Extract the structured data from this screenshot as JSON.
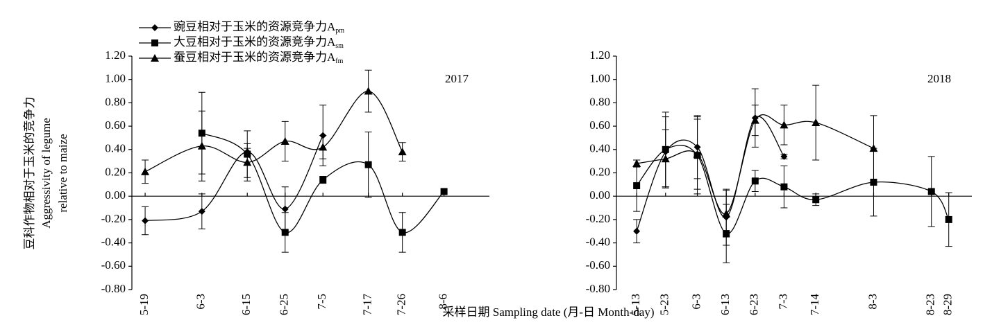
{
  "legend": [
    {
      "name": "豌豆相对于玉米的资源竞争力A",
      "subscript": "pm",
      "marker": "diamond"
    },
    {
      "name": "大豆相对于玉米的资源竞争力A",
      "subscript": "sm",
      "marker": "square"
    },
    {
      "name": "蚕豆相对于玉米的资源竞争力A",
      "subscript": "fm",
      "marker": "triangle"
    }
  ],
  "y_label": [
    "豆科作物相对于玉米的竞争力",
    "Aggressivity of legume",
    "relative to maize"
  ],
  "x_label": "采样日期 Sampling date (月-日 Month-day)",
  "chart_data": [
    {
      "type": "line",
      "label": "2017",
      "categories": [
        "5-19",
        "6-3",
        "6-15",
        "6-25",
        "7-5",
        "7-17",
        "7-26",
        "8-6"
      ],
      "series": [
        {
          "color": "#000000",
          "values": [
            -0.21,
            -0.13,
            0.38,
            -0.11,
            0.52,
            null,
            null,
            null
          ],
          "errors": [
            0.12,
            0.15,
            0.03,
            0.19,
            0.26,
            null,
            null,
            null
          ]
        },
        {
          "color": "#000000",
          "values": [
            null,
            0.54,
            0.36,
            -0.31,
            0.14,
            0.27,
            -0.31,
            0.04
          ],
          "errors": [
            null,
            0.35,
            0.2,
            0.17,
            0.03,
            0.28,
            0.17,
            0.02
          ]
        },
        {
          "color": "#000000",
          "values": [
            0.21,
            0.43,
            0.29,
            0.47,
            0.42,
            0.9,
            0.38,
            null
          ],
          "errors": [
            0.1,
            0.3,
            0.16,
            0.17,
            0.1,
            0.18,
            0.08,
            null
          ]
        }
      ],
      "ylim": [
        -0.8,
        1.2
      ],
      "yticks": [
        {
          "value": -0.8,
          "label": "-0.80"
        },
        {
          "value": -0.6,
          "label": "-0.60"
        },
        {
          "value": -0.4,
          "label": "-0.40"
        },
        {
          "value": -0.2,
          "label": "-0.20"
        },
        {
          "value": 0,
          "label": "0.00"
        },
        {
          "value": 0.2,
          "label": "0.20"
        },
        {
          "value": 0.4,
          "label": "0.40"
        },
        {
          "value": 0.6,
          "label": "0.60"
        },
        {
          "value": 0.8,
          "label": "0.80"
        },
        {
          "value": 1,
          "label": "1.00"
        },
        {
          "value": 1.2,
          "label": "1.20"
        }
      ]
    },
    {
      "type": "line",
      "label": "2018",
      "categories": [
        "5-13",
        "5-23",
        "6-3",
        "6-13",
        "6-23",
        "7-3",
        "7-14",
        "8-3",
        "8-23",
        "8-29"
      ],
      "series": [
        {
          "color": "#000000",
          "values": [
            -0.3,
            0.38,
            0.42,
            -0.18,
            0.67,
            0.34,
            null,
            null,
            null,
            null
          ],
          "errors": [
            0.1,
            0.3,
            0.27,
            0.24,
            0.25,
            0.02,
            null,
            null,
            null,
            null
          ]
        },
        {
          "color": "#000000",
          "values": [
            0.09,
            0.4,
            0.35,
            -0.32,
            0.13,
            0.08,
            -0.03,
            0.12,
            0.04,
            -0.2
          ],
          "errors": [
            0.22,
            0.32,
            0.33,
            0.25,
            0.09,
            0.18,
            0.05,
            0.29,
            0.3,
            0.23
          ]
        },
        {
          "color": "#000000",
          "values": [
            0.28,
            0.32,
            0.36,
            -0.15,
            0.65,
            0.61,
            0.63,
            0.41,
            null,
            null
          ],
          "errors": [
            0.03,
            0.25,
            0.3,
            0.2,
            0.13,
            0.17,
            0.32,
            0.28,
            null,
            null
          ]
        }
      ],
      "ylim": [
        -0.8,
        1.2
      ],
      "yticks": [
        {
          "value": -0.8,
          "label": "-0.80"
        },
        {
          "value": -0.6,
          "label": "-0.60"
        },
        {
          "value": -0.4,
          "label": "-0.40"
        },
        {
          "value": -0.2,
          "label": "-0.20"
        },
        {
          "value": 0,
          "label": "0.00"
        },
        {
          "value": 0.2,
          "label": "0.20"
        },
        {
          "value": 0.4,
          "label": "0.40"
        },
        {
          "value": 0.6,
          "label": "0.60"
        },
        {
          "value": 0.8,
          "label": "0.80"
        },
        {
          "value": 1,
          "label": "1.00"
        },
        {
          "value": 1.2,
          "label": "1.20"
        }
      ]
    }
  ]
}
